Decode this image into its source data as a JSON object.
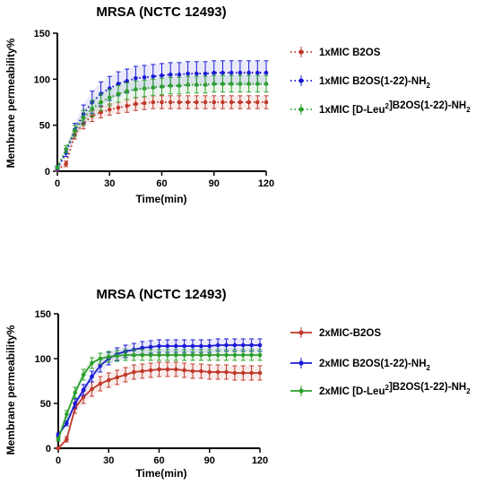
{
  "chart_data": [
    {
      "type": "line",
      "title": "MRSA (NCTC 12493)",
      "xlabel": "Time(min)",
      "ylabel": "Membrane permeability%",
      "xlim": [
        0,
        120
      ],
      "ylim": [
        0,
        150
      ],
      "xticks": [
        0,
        30,
        60,
        90,
        120
      ],
      "yticks": [
        0,
        50,
        100,
        150
      ],
      "line_style": "dotted",
      "legend_position": "right",
      "x": [
        0,
        5,
        10,
        15,
        20,
        25,
        30,
        35,
        40,
        45,
        50,
        55,
        60,
        65,
        70,
        75,
        80,
        85,
        90,
        95,
        100,
        105,
        110,
        115,
        120
      ],
      "series": [
        {
          "name": "1xMIC B2OS",
          "color": "#c0392b",
          "values": [
            2,
            8,
            40,
            52,
            60,
            64,
            67,
            69,
            71,
            73,
            74,
            75,
            75,
            75,
            75,
            75,
            75,
            75,
            75,
            75,
            75,
            75,
            75,
            75,
            75
          ],
          "error": [
            2,
            3,
            5,
            6,
            6,
            6,
            6,
            6,
            7,
            7,
            7,
            7,
            7,
            7,
            7,
            7,
            7,
            7,
            7,
            7,
            7,
            7,
            7,
            7,
            7
          ]
        },
        {
          "name": "1xMIC B2OS(1-22)-NH2",
          "color": "#1a1ad6",
          "values": [
            3,
            20,
            45,
            62,
            75,
            84,
            90,
            95,
            98,
            101,
            102,
            103,
            104,
            105,
            105,
            106,
            106,
            106,
            107,
            107,
            107,
            107,
            107,
            107,
            107
          ],
          "error": [
            2,
            4,
            7,
            10,
            12,
            13,
            13,
            13,
            13,
            13,
            13,
            13,
            13,
            13,
            13,
            13,
            13,
            13,
            13,
            13,
            13,
            13,
            13,
            13,
            13
          ]
        },
        {
          "name": "1xMIC [D-Leu2]B2OS(1-22)-NH2",
          "color": "#2ca02c",
          "values": [
            4,
            24,
            44,
            58,
            68,
            75,
            80,
            84,
            87,
            89,
            90,
            91,
            92,
            93,
            93,
            94,
            94,
            94,
            95,
            95,
            95,
            95,
            95,
            95,
            95
          ],
          "error": [
            2,
            4,
            6,
            8,
            9,
            9,
            9,
            9,
            9,
            9,
            9,
            9,
            9,
            9,
            9,
            9,
            9,
            9,
            9,
            9,
            9,
            9,
            9,
            9,
            9
          ]
        }
      ]
    },
    {
      "type": "line",
      "title": "MRSA (NCTC 12493)",
      "xlabel": "Time(min)",
      "ylabel": "Membrane permeability%",
      "xlim": [
        0,
        120
      ],
      "ylim": [
        0,
        150
      ],
      "xticks": [
        0,
        30,
        60,
        90,
        120
      ],
      "yticks": [
        0,
        50,
        100,
        150
      ],
      "line_style": "solid",
      "legend_position": "right",
      "x": [
        0,
        5,
        10,
        15,
        20,
        25,
        30,
        35,
        40,
        45,
        50,
        55,
        60,
        65,
        70,
        75,
        80,
        85,
        90,
        95,
        100,
        105,
        110,
        115,
        120
      ],
      "series": [
        {
          "name": "2xMIC-B2OS",
          "color": "#c0392b",
          "values": [
            0,
            10,
            45,
            57,
            66,
            72,
            76,
            79,
            82,
            85,
            86,
            87,
            88,
            88,
            88,
            87,
            86,
            86,
            85,
            85,
            85,
            84,
            84,
            84,
            84
          ],
          "error": [
            1,
            3,
            6,
            7,
            8,
            8,
            8,
            8,
            8,
            8,
            8,
            8,
            8,
            8,
            8,
            8,
            8,
            8,
            8,
            8,
            8,
            8,
            8,
            8,
            8
          ]
        },
        {
          "name": "2xMIC B2OS(1-22)-NH2",
          "color": "#1a1ad6",
          "values": [
            15,
            28,
            50,
            65,
            80,
            92,
            100,
            105,
            108,
            110,
            112,
            113,
            114,
            114,
            114,
            114,
            114,
            114,
            114,
            115,
            115,
            115,
            115,
            115,
            115
          ],
          "error": [
            2,
            3,
            5,
            6,
            6,
            7,
            7,
            7,
            7,
            7,
            7,
            7,
            7,
            7,
            7,
            7,
            7,
            7,
            7,
            7,
            7,
            7,
            7,
            7,
            7
          ]
        },
        {
          "name": "2xMIC [D-Leu2]B2OS(1-22)-NH2",
          "color": "#2ca02c",
          "values": [
            10,
            38,
            62,
            82,
            95,
            100,
            102,
            103,
            104,
            104,
            104,
            104,
            104,
            104,
            104,
            104,
            104,
            104,
            104,
            104,
            104,
            104,
            104,
            104,
            104
          ],
          "error": [
            2,
            4,
            6,
            6,
            6,
            6,
            6,
            6,
            6,
            6,
            6,
            6,
            6,
            6,
            6,
            6,
            6,
            6,
            6,
            6,
            6,
            6,
            6,
            6,
            6
          ]
        }
      ]
    }
  ]
}
